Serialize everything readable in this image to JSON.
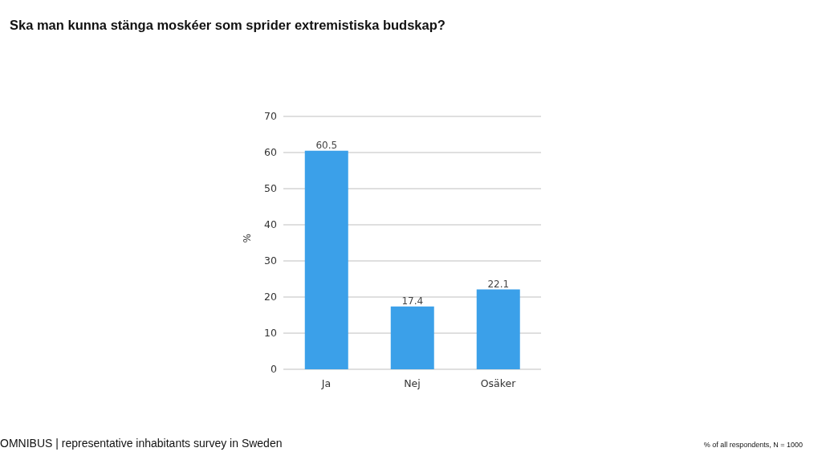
{
  "chart_data": {
    "type": "bar",
    "title": "Ska man kunna stänga moskéer som sprider extremistiska budskap?",
    "ylabel": "%",
    "categories": [
      "Ja",
      "Nej",
      "Osäker"
    ],
    "values": [
      60.5,
      17.4,
      22.1
    ],
    "color": "#3ba0e9",
    "ylim": [
      0,
      70
    ],
    "yticks": [
      0,
      10,
      20,
      30,
      40,
      50,
      60,
      70
    ],
    "grid": "y",
    "data_labels": true,
    "annotations": [
      "OMNIBUS | representative inhabitants survey in Sweden",
      "% of all respondents, N = 1000"
    ]
  }
}
